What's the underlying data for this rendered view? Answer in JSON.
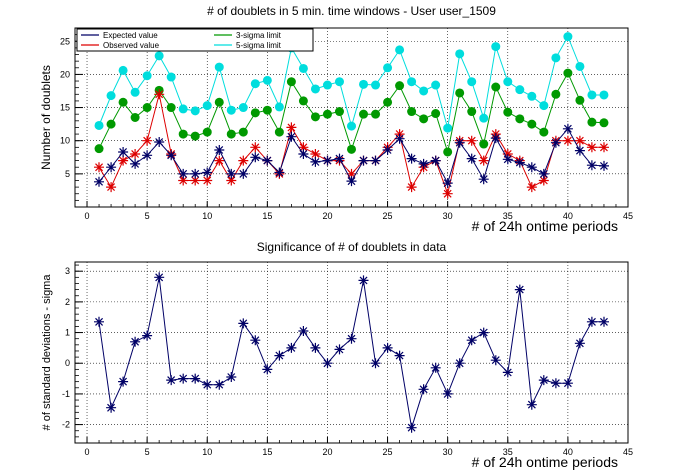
{
  "chart_data": [
    {
      "type": "line",
      "title": "# of doublets in 5 min. time windows - User user_1509",
      "xlabel": "# of 24h ontime periods",
      "ylabel": "Number of doublets",
      "xlim": [
        -1,
        45
      ],
      "ylim": [
        0,
        27
      ],
      "x_ticks": [
        "0",
        "5",
        "10",
        "15",
        "20",
        "25",
        "30",
        "35",
        "40",
        "45"
      ],
      "y_ticks": [
        "5",
        "10",
        "15",
        "20",
        "25"
      ],
      "grid": true,
      "legend_position": "top-left",
      "x": [
        1,
        2,
        3,
        4,
        5,
        6,
        7,
        8,
        9,
        10,
        11,
        12,
        13,
        14,
        15,
        16,
        17,
        18,
        19,
        20,
        21,
        22,
        23,
        24,
        25,
        26,
        27,
        28,
        29,
        30,
        31,
        32,
        33,
        34,
        35,
        36,
        37,
        38,
        39,
        40,
        41,
        42,
        43
      ],
      "series": [
        {
          "name": "Expected value",
          "color": "#000066",
          "marker": "star",
          "values": [
            3.8,
            6,
            8.3,
            6.5,
            7.8,
            9.8,
            7.8,
            5,
            5,
            5.2,
            8.6,
            5,
            5,
            7.5,
            7,
            5.2,
            10.6,
            8,
            6.8,
            7,
            7.3,
            3.9,
            7,
            7,
            8.6,
            10.3,
            7.3,
            6.5,
            7,
            3.6,
            9.7,
            7.3,
            4.2,
            10.4,
            7.2,
            6.7,
            6,
            5,
            9.7,
            11.8,
            8.5,
            6.3,
            6.2
          ]
        },
        {
          "name": "Observed value",
          "color": "#dd0000",
          "marker": "star",
          "values": [
            6,
            3,
            7,
            8,
            10,
            17,
            8,
            4,
            4,
            4,
            7,
            4,
            7,
            9,
            7,
            5,
            12,
            9,
            8,
            7,
            7,
            5,
            7,
            7,
            9,
            11,
            3,
            6,
            7,
            2,
            10,
            10,
            7,
            11,
            8,
            7,
            3,
            4,
            10,
            10,
            10,
            9,
            9
          ]
        },
        {
          "name": "3-sigma limit",
          "color": "#009900",
          "marker": "circle",
          "values": [
            8.8,
            12.5,
            15.8,
            13.5,
            15,
            17.6,
            15,
            11,
            10.7,
            11.3,
            15.8,
            11,
            11.3,
            14.2,
            14.6,
            11.3,
            18.9,
            16,
            13.6,
            14,
            14.4,
            8.7,
            14,
            14,
            15.8,
            18.3,
            14.4,
            13.3,
            14.1,
            8.3,
            17.2,
            14.4,
            9.5,
            18.1,
            14.3,
            13.3,
            12.5,
            11.3,
            17,
            20.2,
            16.1,
            12.8,
            12.7
          ]
        },
        {
          "name": "5-sigma limit",
          "color": "#00dddd",
          "marker": "circle",
          "values": [
            12.3,
            16.8,
            20.6,
            17.3,
            19.8,
            22.8,
            19.6,
            14.8,
            14.5,
            15.3,
            21.1,
            14.6,
            15,
            18.6,
            19.1,
            15.1,
            24,
            20.9,
            17.8,
            18.4,
            18.9,
            12.2,
            18.5,
            18.4,
            21,
            23.7,
            18.9,
            17.5,
            18.4,
            11.9,
            23.1,
            18.9,
            13.4,
            24.2,
            18.9,
            17.7,
            16.7,
            15.3,
            22.5,
            25.7,
            21.2,
            16.9,
            16.9
          ]
        }
      ]
    },
    {
      "type": "line",
      "title": "Significance of # of doublets in data",
      "xlabel": "# of 24h ontime periods",
      "ylabel": "# of standard deviations - sigma",
      "xlim": [
        -1,
        45
      ],
      "ylim": [
        -2.6,
        3.3
      ],
      "x_ticks": [
        "0",
        "5",
        "10",
        "15",
        "20",
        "25",
        "30",
        "35",
        "40",
        "45"
      ],
      "y_ticks": [
        "-2",
        "-1",
        "0",
        "1",
        "2",
        "3"
      ],
      "grid": true,
      "x": [
        1,
        2,
        3,
        4,
        5,
        6,
        7,
        8,
        9,
        10,
        11,
        12,
        13,
        14,
        15,
        16,
        17,
        18,
        19,
        20,
        21,
        22,
        23,
        24,
        25,
        26,
        27,
        28,
        29,
        30,
        31,
        32,
        33,
        34,
        35,
        36,
        37,
        38,
        39,
        40,
        41,
        42,
        43
      ],
      "series": [
        {
          "color": "#000066",
          "marker": "star",
          "values": [
            1.35,
            -1.45,
            -0.6,
            0.7,
            0.9,
            2.8,
            -0.55,
            -0.5,
            -0.5,
            -0.7,
            -0.7,
            -0.45,
            1.3,
            0.75,
            -0.2,
            0.25,
            0.5,
            1.05,
            0.5,
            0.0,
            0.45,
            0.8,
            2.7,
            0.0,
            0.5,
            0.25,
            -2.1,
            -0.85,
            -0.15,
            -1.0,
            0.0,
            0.75,
            1.0,
            0.1,
            -0.3,
            2.4,
            -1.35,
            -0.55,
            -0.65,
            -0.65,
            0.65,
            1.35,
            1.35
          ]
        }
      ]
    }
  ]
}
